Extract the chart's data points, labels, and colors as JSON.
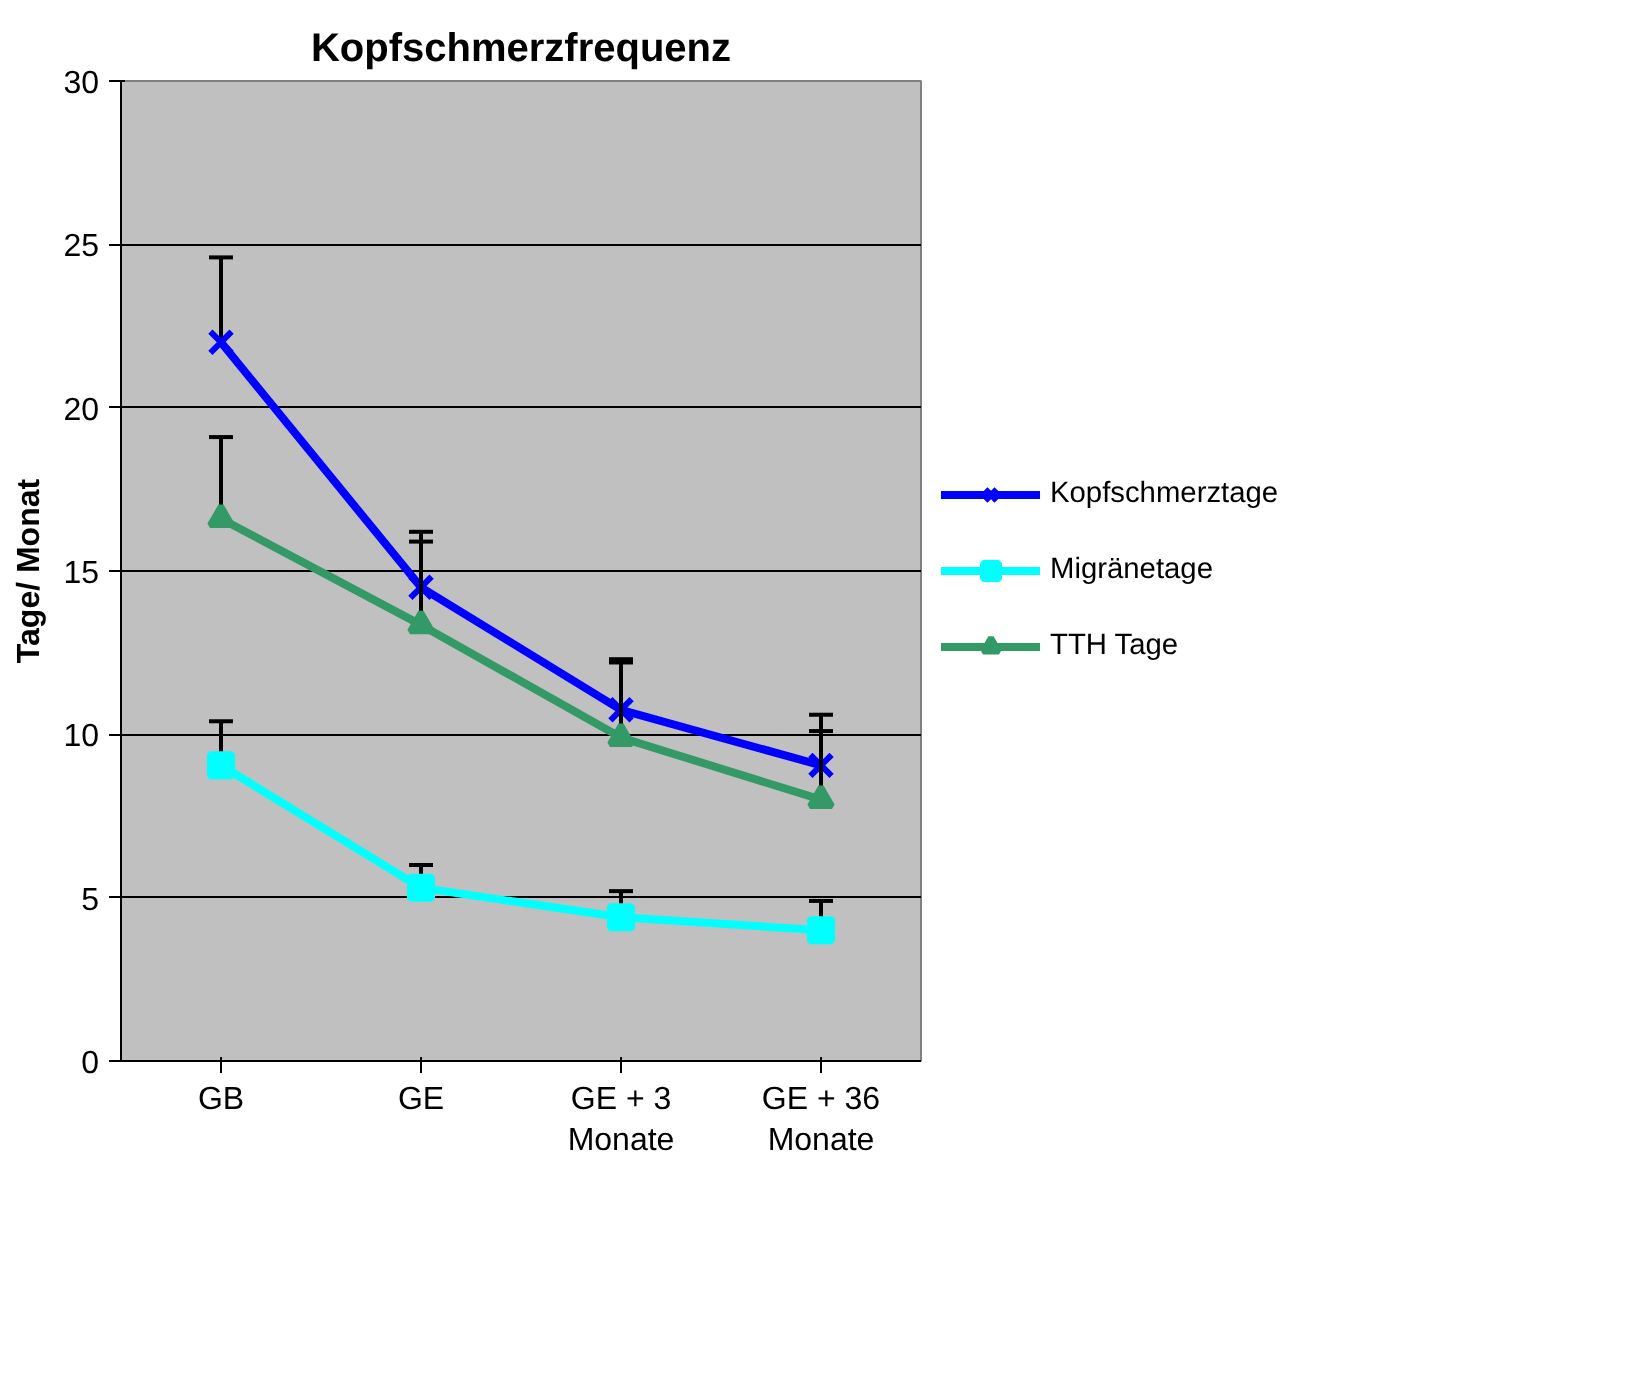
{
  "chart_data": {
    "type": "line",
    "title": "Kopfschmerzfrequenz",
    "ylabel": "Tage/ Monat",
    "categories": [
      "GB",
      "GE",
      "GE + 3\nMonate",
      "GE + 36\nMonate"
    ],
    "series": [
      {
        "name": "Kopfschmerztage",
        "color": "#0000ff",
        "marker": "cross",
        "values": [
          22.0,
          14.5,
          10.75,
          9.05
        ],
        "errors": [
          [
            22.0,
            24.6
          ],
          [
            14.5,
            16.2
          ],
          [
            10.75,
            12.3
          ],
          [
            9.05,
            10.6
          ]
        ]
      },
      {
        "name": "Migränetage",
        "color": "#00ffff",
        "marker": "square",
        "values": [
          9.05,
          5.3,
          4.4,
          4.0
        ],
        "errors": [
          [
            9.05,
            10.4
          ],
          [
            5.3,
            6.0
          ],
          [
            4.4,
            5.2
          ],
          [
            4.0,
            4.9
          ]
        ]
      },
      {
        "name": "TTH Tage",
        "color": "#339966",
        "marker": "triangle",
        "values": [
          16.6,
          13.35,
          9.9,
          8.0
        ],
        "errors": [
          [
            16.6,
            19.1
          ],
          [
            13.35,
            15.9
          ],
          [
            9.9,
            12.2
          ],
          [
            8.0,
            10.1
          ]
        ]
      }
    ],
    "ylim": [
      0,
      30
    ],
    "yticks": [
      0,
      5,
      10,
      15,
      20,
      25,
      30
    ],
    "grid": "y",
    "legend": "right"
  }
}
